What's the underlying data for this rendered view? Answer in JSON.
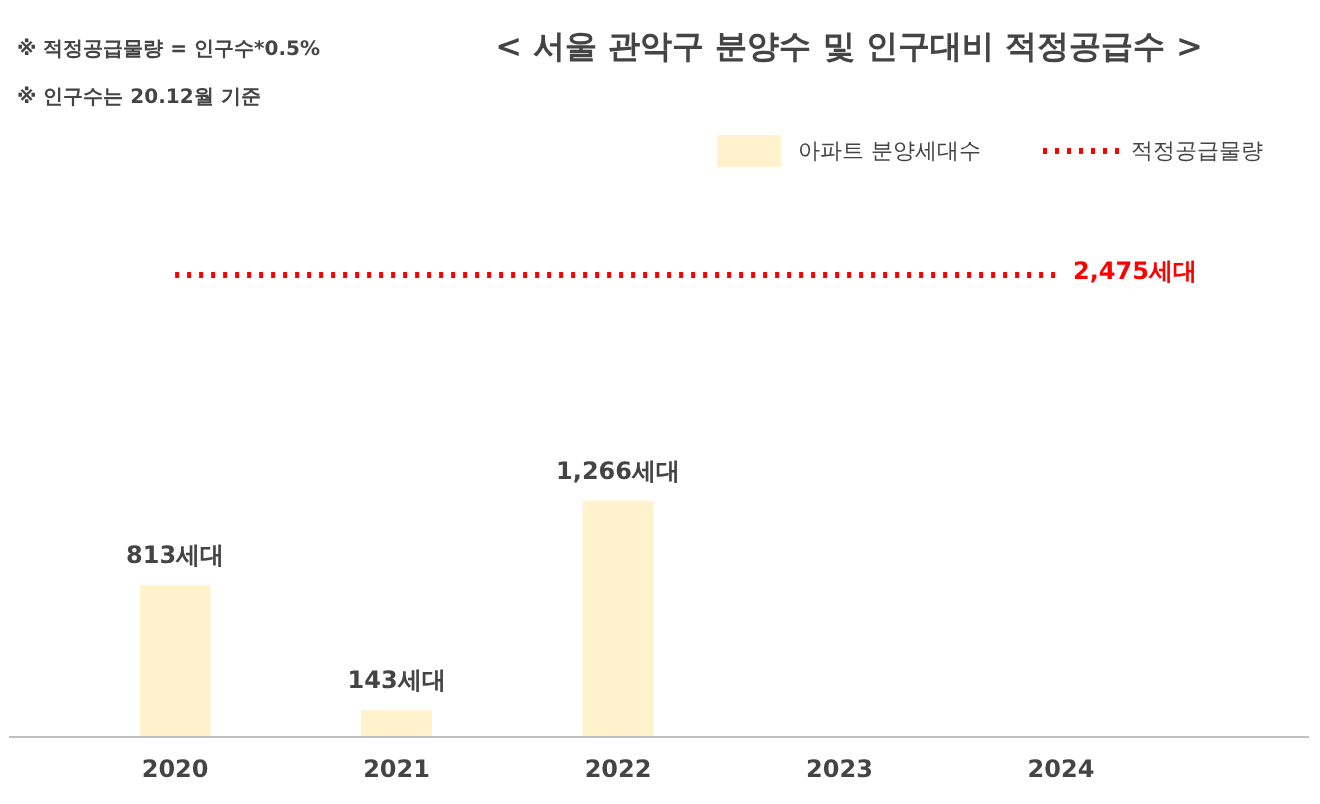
{
  "chart_data": {
    "type": "bar",
    "title": "< 서울 관악구 분양수 및 인구대비 적정공급수 >",
    "annotations": [
      "※ 적정공급물량 = 인구수*0.5%",
      "※ 인구수는 20.12월 기준"
    ],
    "categories": [
      "2020",
      "2021",
      "2022",
      "2023",
      "2024"
    ],
    "series": [
      {
        "name": "아파트 분양세대수",
        "color": "#fff2cc",
        "values": [
          813,
          143,
          1266,
          null,
          null
        ],
        "value_labels": [
          "813세대",
          "143세대",
          "1,266세대",
          null,
          null
        ]
      },
      {
        "name": "적정공급물량",
        "type": "line",
        "color": "#ff0000",
        "line_style": "dotted",
        "values": [
          2475,
          2475,
          2475,
          2475,
          2475
        ],
        "value_labels": [
          null,
          null,
          null,
          null,
          "2,475세대"
        ]
      }
    ],
    "grid": false,
    "legend": "top right",
    "tick_labels": "x"
  }
}
